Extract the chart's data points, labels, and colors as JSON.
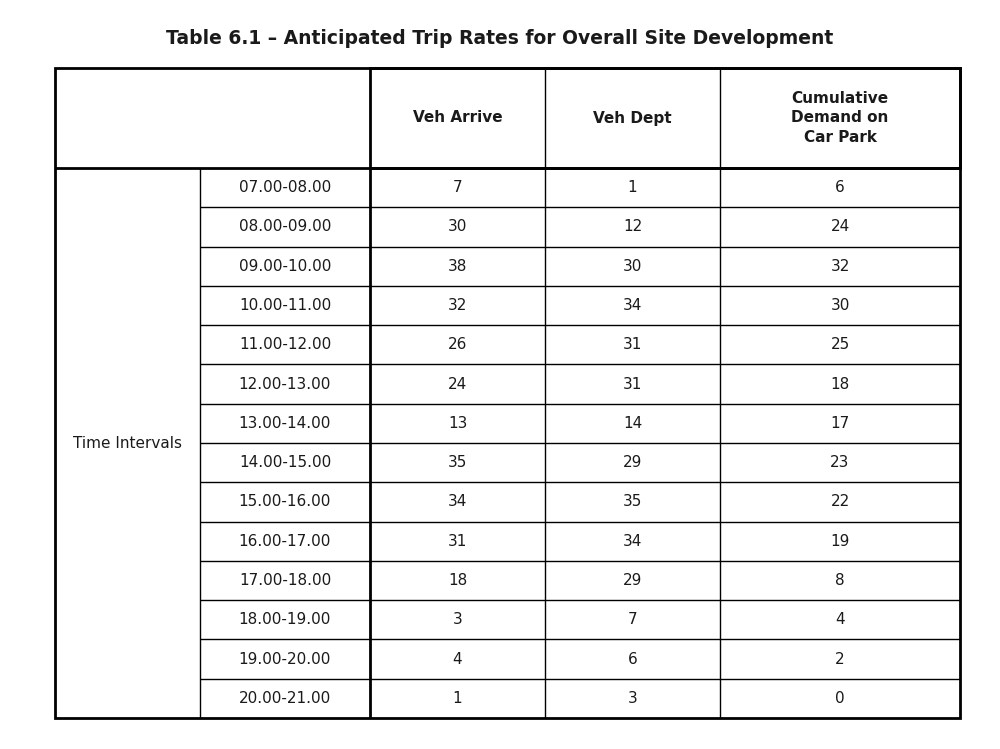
{
  "title": "Table 6.1 – Anticipated Trip Rates for Overall Site Development",
  "title_fontsize": 13.5,
  "col_headers": [
    "Veh Arrive",
    "Veh Dept",
    "Cumulative\nDemand on\nCar Park"
  ],
  "row_label_group": "Time Intervals",
  "time_intervals": [
    "07.00-08.00",
    "08.00-09.00",
    "09.00-10.00",
    "10.00-11.00",
    "11.00-12.00",
    "12.00-13.00",
    "13.00-14.00",
    "14.00-15.00",
    "15.00-16.00",
    "16.00-17.00",
    "17.00-18.00",
    "18.00-19.00",
    "19.00-20.00",
    "20.00-21.00"
  ],
  "veh_arrive": [
    7,
    30,
    38,
    32,
    26,
    24,
    13,
    35,
    34,
    31,
    18,
    3,
    4,
    1
  ],
  "veh_dept": [
    1,
    12,
    30,
    34,
    31,
    31,
    14,
    29,
    35,
    34,
    29,
    7,
    6,
    3
  ],
  "cumulative_demand": [
    6,
    24,
    32,
    30,
    25,
    18,
    17,
    23,
    22,
    19,
    8,
    4,
    2,
    0
  ],
  "bg_color": "#ffffff",
  "text_color": "#1a1a1a",
  "border_color": "#000000",
  "table_font_size": 11,
  "header_font_size": 11,
  "lw_outer": 2.0,
  "lw_inner": 1.0,
  "fig_width": 10.0,
  "fig_height": 7.49,
  "dpi": 100
}
